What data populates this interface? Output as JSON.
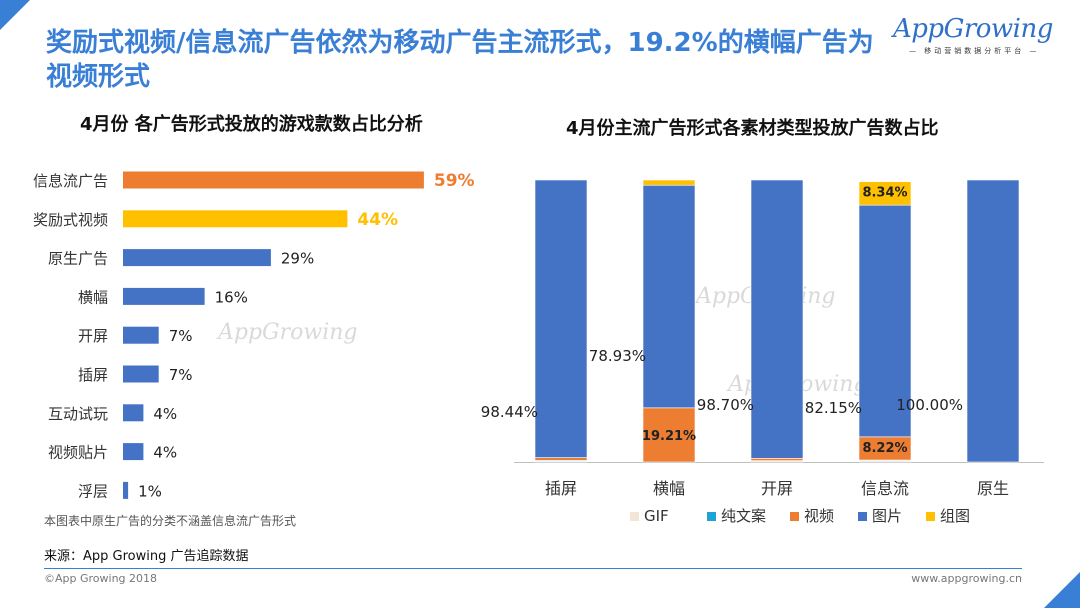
{
  "header": {
    "title": "奖励式视频/信息流广告依然为移动广告主流形式，19.2%的横幅广告为视频形式"
  },
  "logo": {
    "brand": "AppGrowing",
    "tagline": "— 移动营销数据分析平台 —"
  },
  "watermark": "AppGrowing",
  "colors": {
    "accent_blue": "#4472c4",
    "highlight_orange": "#ed7d31",
    "highlight_yellow": "#ffc000",
    "gif": "#f2e6d6",
    "text_copy": "#1fa3d6",
    "title_blue": "#3a7fd6"
  },
  "chart_data": [
    {
      "type": "bar",
      "orientation": "horizontal",
      "title": "4月份 各广告形式投放的游戏款数占比分析",
      "categories": [
        "信息流广告",
        "奖励式视频",
        "原生广告",
        "横幅",
        "开屏",
        "插屏",
        "互动试玩",
        "视频贴片",
        "浮层"
      ],
      "values": [
        59,
        44,
        29,
        16,
        7,
        7,
        4,
        4,
        1
      ],
      "value_labels": [
        "59%",
        "44%",
        "29%",
        "16%",
        "7%",
        "7%",
        "4%",
        "4%",
        "1%"
      ],
      "bar_colors": [
        "#ed7d31",
        "#ffc000",
        "#4472c4",
        "#4472c4",
        "#4472c4",
        "#4472c4",
        "#4472c4",
        "#4472c4",
        "#4472c4"
      ],
      "xlim": [
        0,
        100
      ]
    },
    {
      "type": "bar",
      "stacked": true,
      "title": "4月份主流广告形式各素材类型投放广告数占比",
      "categories": [
        "插屏",
        "横幅",
        "开屏",
        "信息流",
        "原生"
      ],
      "series": [
        {
          "name": "GIF",
          "color": "#f2e6d6",
          "values": [
            0.5,
            0.0,
            0.5,
            0.6,
            0.0
          ]
        },
        {
          "name": "纯文案",
          "color": "#1fa3d6",
          "values": [
            0.1,
            0.0,
            0.0,
            0.1,
            0.0
          ]
        },
        {
          "name": "视频",
          "color": "#ed7d31",
          "values": [
            0.96,
            19.21,
            0.8,
            8.22,
            0.0
          ]
        },
        {
          "name": "图片",
          "color": "#4472c4",
          "values": [
            98.44,
            78.93,
            98.7,
            82.15,
            100.0
          ]
        },
        {
          "name": "组图",
          "color": "#ffc000",
          "values": [
            0.0,
            1.86,
            0.0,
            8.34,
            0.0
          ]
        }
      ],
      "labels": [
        {
          "series": "图片",
          "category": "插屏",
          "text": "98.44%"
        },
        {
          "series": "图片",
          "category": "横幅",
          "text": "78.93%"
        },
        {
          "series": "图片",
          "category": "开屏",
          "text": "98.70%"
        },
        {
          "series": "图片",
          "category": "信息流",
          "text": "82.15%"
        },
        {
          "series": "图片",
          "category": "原生",
          "text": "100.00%"
        },
        {
          "series": "视频",
          "category": "横幅",
          "text": "19.21%"
        },
        {
          "series": "视频",
          "category": "信息流",
          "text": "8.22%"
        },
        {
          "series": "组图",
          "category": "信息流",
          "text": "8.34%"
        }
      ],
      "ylim": [
        0,
        100
      ],
      "legend": "bottom"
    }
  ],
  "footer": {
    "note": "本图表中原生广告的分类不涵盖信息流广告形式",
    "source": "来源：App Growing 广告追踪数据",
    "copyright": "©App Growing 2018",
    "site": "www.appgrowing.cn"
  }
}
